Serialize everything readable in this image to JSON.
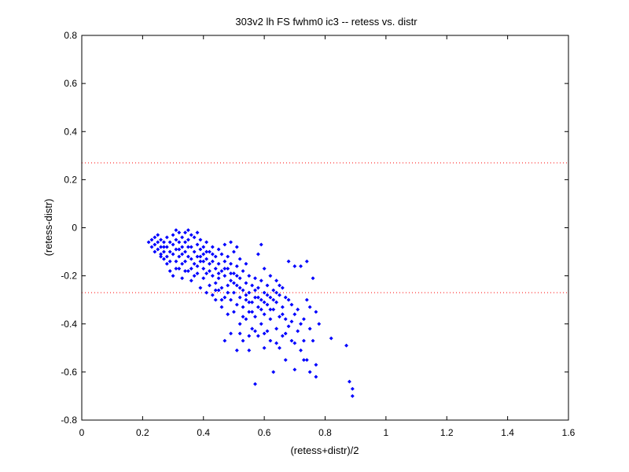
{
  "chart_data": {
    "type": "scatter",
    "title": "303v2 lh FS fwhm0 ic3 -- retess vs. distr",
    "xlabel": "(retess+distr)/2",
    "ylabel": "(retess-distr)",
    "xlim": [
      0,
      1.6
    ],
    "ylim": [
      -0.8,
      0.8
    ],
    "xticks": [
      "0",
      "0.2",
      "0.4",
      "0.6",
      "0.8",
      "1",
      "1.2",
      "1.4",
      "1.6"
    ],
    "yticks": [
      "-0.8",
      "-0.6",
      "-0.4",
      "-0.2",
      "0",
      "0.2",
      "0.4",
      "0.6",
      "0.8"
    ],
    "grid": false,
    "marker_color": "#0000ff",
    "reference_lines": [
      {
        "y": 0.27,
        "color": "#ff0000",
        "style": "dotted"
      },
      {
        "y": -0.27,
        "color": "#ff0000",
        "style": "dotted"
      }
    ],
    "points": [
      [
        0.22,
        -0.06
      ],
      [
        0.23,
        -0.05
      ],
      [
        0.23,
        -0.08
      ],
      [
        0.24,
        -0.04
      ],
      [
        0.24,
        -0.07
      ],
      [
        0.25,
        -0.03
      ],
      [
        0.25,
        -0.06
      ],
      [
        0.25,
        -0.09
      ],
      [
        0.26,
        -0.05
      ],
      [
        0.26,
        -0.08
      ],
      [
        0.26,
        -0.11
      ],
      [
        0.27,
        -0.06
      ],
      [
        0.27,
        -0.1
      ],
      [
        0.27,
        -0.13
      ],
      [
        0.28,
        -0.04
      ],
      [
        0.28,
        -0.08
      ],
      [
        0.28,
        -0.12
      ],
      [
        0.28,
        -0.15
      ],
      [
        0.29,
        -0.06
      ],
      [
        0.29,
        -0.1
      ],
      [
        0.29,
        -0.18
      ],
      [
        0.3,
        -0.03
      ],
      [
        0.3,
        -0.07
      ],
      [
        0.3,
        -0.11
      ],
      [
        0.3,
        -0.2
      ],
      [
        0.31,
        -0.01
      ],
      [
        0.31,
        -0.05
      ],
      [
        0.31,
        -0.09
      ],
      [
        0.31,
        -0.14
      ],
      [
        0.32,
        -0.02
      ],
      [
        0.32,
        -0.06
      ],
      [
        0.32,
        -0.12
      ],
      [
        0.32,
        -0.17
      ],
      [
        0.33,
        -0.04
      ],
      [
        0.33,
        -0.08
      ],
      [
        0.33,
        -0.11
      ],
      [
        0.33,
        -0.21
      ],
      [
        0.34,
        -0.02
      ],
      [
        0.34,
        -0.06
      ],
      [
        0.34,
        -0.1
      ],
      [
        0.34,
        -0.14
      ],
      [
        0.35,
        -0.01
      ],
      [
        0.35,
        -0.05
      ],
      [
        0.35,
        -0.12
      ],
      [
        0.35,
        -0.18
      ],
      [
        0.36,
        -0.03
      ],
      [
        0.36,
        -0.08
      ],
      [
        0.36,
        -0.13
      ],
      [
        0.36,
        -0.22
      ],
      [
        0.37,
        -0.04
      ],
      [
        0.37,
        -0.1
      ],
      [
        0.37,
        -0.15
      ],
      [
        0.38,
        -0.02
      ],
      [
        0.38,
        -0.07
      ],
      [
        0.38,
        -0.12
      ],
      [
        0.38,
        -0.19
      ],
      [
        0.39,
        -0.05
      ],
      [
        0.39,
        -0.09
      ],
      [
        0.39,
        -0.14
      ],
      [
        0.39,
        -0.25
      ],
      [
        0.4,
        -0.08
      ],
      [
        0.4,
        -0.11
      ],
      [
        0.4,
        -0.17
      ],
      [
        0.4,
        -0.21
      ],
      [
        0.41,
        -0.06
      ],
      [
        0.41,
        -0.13
      ],
      [
        0.41,
        -0.19
      ],
      [
        0.41,
        -0.27
      ],
      [
        0.42,
        -0.1
      ],
      [
        0.42,
        -0.15
      ],
      [
        0.42,
        -0.24
      ],
      [
        0.43,
        -0.08
      ],
      [
        0.43,
        -0.14
      ],
      [
        0.43,
        -0.2
      ],
      [
        0.43,
        -0.28
      ],
      [
        0.44,
        -0.12
      ],
      [
        0.44,
        -0.17
      ],
      [
        0.44,
        -0.23
      ],
      [
        0.44,
        -0.3
      ],
      [
        0.45,
        -0.09
      ],
      [
        0.45,
        -0.15
      ],
      [
        0.45,
        -0.21
      ],
      [
        0.45,
        -0.26
      ],
      [
        0.46,
        -0.11
      ],
      [
        0.46,
        -0.18
      ],
      [
        0.46,
        -0.25
      ],
      [
        0.46,
        -0.33
      ],
      [
        0.47,
        -0.07
      ],
      [
        0.47,
        -0.14
      ],
      [
        0.47,
        -0.2
      ],
      [
        0.47,
        -0.29
      ],
      [
        0.47,
        -0.47
      ],
      [
        0.48,
        -0.12
      ],
      [
        0.48,
        -0.17
      ],
      [
        0.48,
        -0.24
      ],
      [
        0.48,
        -0.36
      ],
      [
        0.49,
        -0.06
      ],
      [
        0.49,
        -0.15
      ],
      [
        0.49,
        -0.22
      ],
      [
        0.49,
        -0.3
      ],
      [
        0.49,
        -0.44
      ],
      [
        0.5,
        -0.1
      ],
      [
        0.5,
        -0.19
      ],
      [
        0.5,
        -0.27
      ],
      [
        0.5,
        -0.35
      ],
      [
        0.51,
        -0.08
      ],
      [
        0.51,
        -0.16
      ],
      [
        0.51,
        -0.24
      ],
      [
        0.51,
        -0.32
      ],
      [
        0.51,
        -0.51
      ],
      [
        0.52,
        -0.13
      ],
      [
        0.52,
        -0.21
      ],
      [
        0.52,
        -0.29
      ],
      [
        0.52,
        -0.4
      ],
      [
        0.53,
        -0.18
      ],
      [
        0.53,
        -0.26
      ],
      [
        0.53,
        -0.33
      ],
      [
        0.53,
        -0.47
      ],
      [
        0.54,
        -0.15
      ],
      [
        0.54,
        -0.23
      ],
      [
        0.54,
        -0.3
      ],
      [
        0.54,
        -0.38
      ],
      [
        0.55,
        -0.2
      ],
      [
        0.55,
        -0.27
      ],
      [
        0.55,
        -0.35
      ],
      [
        0.55,
        -0.51
      ],
      [
        0.56,
        -0.24
      ],
      [
        0.56,
        -0.31
      ],
      [
        0.56,
        -0.42
      ],
      [
        0.57,
        -0.21
      ],
      [
        0.57,
        -0.29
      ],
      [
        0.57,
        -0.37
      ],
      [
        0.57,
        -0.65
      ],
      [
        0.58,
        -0.11
      ],
      [
        0.58,
        -0.25
      ],
      [
        0.58,
        -0.33
      ],
      [
        0.58,
        -0.45
      ],
      [
        0.59,
        -0.07
      ],
      [
        0.59,
        -0.22
      ],
      [
        0.59,
        -0.3
      ],
      [
        0.59,
        -0.4
      ],
      [
        0.6,
        -0.17
      ],
      [
        0.6,
        -0.27
      ],
      [
        0.6,
        -0.36
      ],
      [
        0.6,
        -0.5
      ],
      [
        0.61,
        -0.24
      ],
      [
        0.61,
        -0.32
      ],
      [
        0.61,
        -0.43
      ],
      [
        0.62,
        -0.2
      ],
      [
        0.62,
        -0.29
      ],
      [
        0.62,
        -0.38
      ],
      [
        0.63,
        -0.26
      ],
      [
        0.63,
        -0.34
      ],
      [
        0.63,
        -0.6
      ],
      [
        0.64,
        -0.22
      ],
      [
        0.64,
        -0.31
      ],
      [
        0.64,
        -0.42
      ],
      [
        0.65,
        -0.28
      ],
      [
        0.65,
        -0.37
      ],
      [
        0.65,
        -0.5
      ],
      [
        0.66,
        -0.25
      ],
      [
        0.66,
        -0.33
      ],
      [
        0.66,
        -0.45
      ],
      [
        0.67,
        -0.29
      ],
      [
        0.67,
        -0.38
      ],
      [
        0.67,
        -0.55
      ],
      [
        0.68,
        -0.14
      ],
      [
        0.68,
        -0.41
      ],
      [
        0.69,
        -0.32
      ],
      [
        0.69,
        -0.47
      ],
      [
        0.7,
        -0.16
      ],
      [
        0.7,
        -0.36
      ],
      [
        0.7,
        -0.59
      ],
      [
        0.71,
        -0.43
      ],
      [
        0.72,
        -0.16
      ],
      [
        0.72,
        -0.51
      ],
      [
        0.73,
        -0.38
      ],
      [
        0.73,
        -0.47
      ],
      [
        0.74,
        -0.14
      ],
      [
        0.74,
        -0.55
      ],
      [
        0.75,
        -0.42
      ],
      [
        0.75,
        -0.6
      ],
      [
        0.76,
        -0.21
      ],
      [
        0.76,
        -0.47
      ],
      [
        0.77,
        -0.35
      ],
      [
        0.77,
        -0.57
      ],
      [
        0.77,
        -0.62
      ],
      [
        0.78,
        -0.4
      ],
      [
        0.82,
        -0.46
      ],
      [
        0.87,
        -0.49
      ],
      [
        0.88,
        -0.64
      ],
      [
        0.89,
        -0.67
      ],
      [
        0.89,
        -0.7
      ],
      [
        0.26,
        -0.12
      ],
      [
        0.29,
        -0.14
      ],
      [
        0.31,
        -0.17
      ],
      [
        0.33,
        -0.15
      ],
      [
        0.34,
        -0.18
      ],
      [
        0.36,
        -0.17
      ],
      [
        0.37,
        -0.2
      ],
      [
        0.38,
        -0.16
      ],
      [
        0.4,
        -0.14
      ],
      [
        0.42,
        -0.18
      ],
      [
        0.44,
        -0.26
      ],
      [
        0.45,
        -0.19
      ],
      [
        0.46,
        -0.3
      ],
      [
        0.48,
        -0.27
      ],
      [
        0.5,
        -0.23
      ],
      [
        0.52,
        -0.25
      ],
      [
        0.53,
        -0.37
      ],
      [
        0.55,
        -0.31
      ],
      [
        0.56,
        -0.35
      ],
      [
        0.58,
        -0.29
      ],
      [
        0.6,
        -0.31
      ],
      [
        0.61,
        -0.28
      ],
      [
        0.62,
        -0.34
      ],
      [
        0.64,
        -0.27
      ],
      [
        0.66,
        -0.36
      ],
      [
        0.68,
        -0.3
      ],
      [
        0.71,
        -0.34
      ],
      [
        0.74,
        -0.3
      ],
      [
        0.24,
        -0.1
      ],
      [
        0.27,
        -0.08
      ],
      [
        0.32,
        -0.09
      ],
      [
        0.35,
        -0.08
      ],
      [
        0.39,
        -0.12
      ],
      [
        0.41,
        -0.1
      ],
      [
        0.43,
        -0.11
      ],
      [
        0.47,
        -0.17
      ],
      [
        0.49,
        -0.19
      ],
      [
        0.51,
        -0.2
      ],
      [
        0.54,
        -0.28
      ],
      [
        0.57,
        -0.26
      ],
      [
        0.59,
        -0.34
      ],
      [
        0.63,
        -0.3
      ],
      [
        0.65,
        -0.24
      ],
      [
        0.67,
        -0.44
      ],
      [
        0.69,
        -0.39
      ],
      [
        0.72,
        -0.4
      ],
      [
        0.75,
        -0.33
      ],
      [
        0.57,
        -0.43
      ],
      [
        0.6,
        -0.44
      ],
      [
        0.64,
        -0.48
      ],
      [
        0.7,
        -0.48
      ],
      [
        0.73,
        -0.55
      ],
      [
        0.62,
        -0.47
      ],
      [
        0.55,
        -0.45
      ],
      [
        0.52,
        -0.44
      ]
    ]
  }
}
